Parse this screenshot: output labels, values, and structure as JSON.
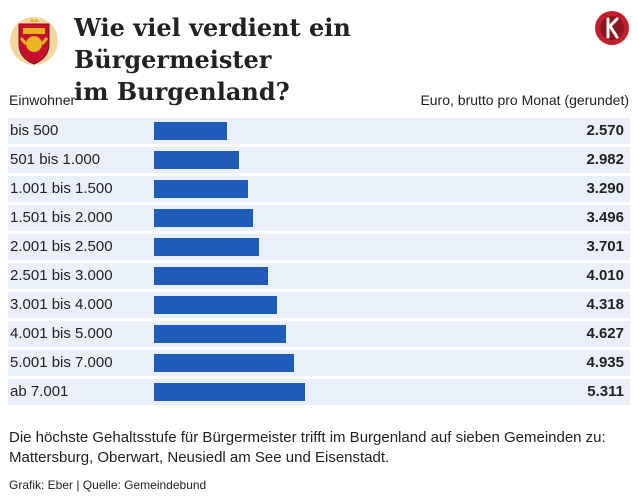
{
  "header": {
    "title_line1": "Wie viel verdient ein Bürgermeister",
    "title_line2": "im Burgenland?",
    "logo_icon": "burgenland-coat-of-arms-icon",
    "brand_icon": "kurier-logo-icon",
    "brand_color": "#c0202c"
  },
  "columns": {
    "left": "Einwohner",
    "right": "Euro, brutto pro Monat (gerundet)"
  },
  "chart_data": {
    "type": "bar",
    "orientation": "horizontal",
    "categories": [
      "bis 500",
      "501 bis 1.000",
      "1.001 bis 1.500",
      "1.501 bis 2.000",
      "2.001 bis 2.500",
      "2.501 bis 3.000",
      "3.001 bis 4.000",
      "4.001 bis 5.000",
      "5.001 bis 7.000",
      "ab 7.001"
    ],
    "values": [
      2570,
      2982,
      3290,
      3496,
      3701,
      4010,
      4318,
      4627,
      4935,
      5311
    ],
    "value_labels": [
      "2.570",
      "2.982",
      "3.290",
      "3.496",
      "3.701",
      "4.010",
      "4.318",
      "4.627",
      "4.935",
      "5.311"
    ],
    "xlim": [
      0,
      5311
    ],
    "bar_color": "#1f5bb8",
    "row_color": "#eaf0fa",
    "grid": false
  },
  "footer": {
    "note": "Die höchste Gehaltsstufe für Bürgermeister trifft im Burgenland auf sieben Gemeinden zu: Mattersburg, Oberwart, Neusiedl am See und Eisenstadt.",
    "source": "Grafik: Eber | Quelle: Gemeindebund"
  }
}
